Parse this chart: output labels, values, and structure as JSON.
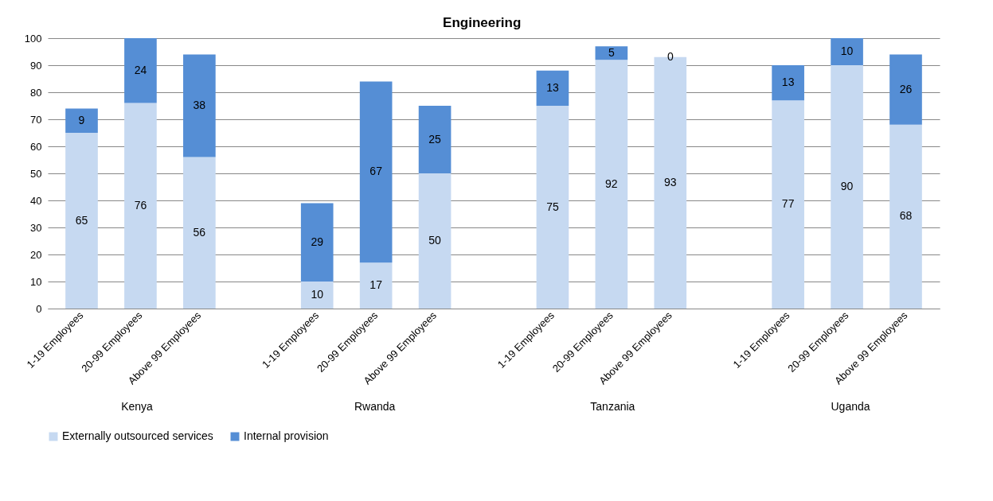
{
  "chart_data": {
    "type": "bar",
    "title": "Engineering",
    "stacked": true,
    "data_labels": true,
    "grid": "y",
    "legend": "bottom",
    "categories": [
      "1-19 Employees",
      "20-99 Employees",
      "Above 99 Employees",
      null,
      "1-19 Employees",
      "20-99 Employees",
      "Above 99 Employees",
      null,
      "1-19 Employees",
      "20-99 Employees",
      "Above 99 Employees",
      null,
      "1-19 Employees",
      "20-99 Employees",
      "Above 99 Employees"
    ],
    "series": [
      {
        "name": "Externally outsourced services",
        "color": "#c6d9f1",
        "values": [
          65,
          76,
          56,
          null,
          10,
          17,
          50,
          null,
          75,
          92,
          93,
          null,
          77,
          90,
          68
        ]
      },
      {
        "name": "Internal provision",
        "color": "#558ed5",
        "values": [
          9,
          24,
          38,
          null,
          29,
          67,
          25,
          null,
          13,
          5,
          0,
          null,
          13,
          10,
          26
        ]
      }
    ],
    "ylim": [
      0,
      100
    ],
    "yticks": [
      0,
      10,
      20,
      30,
      40,
      50,
      60,
      70,
      80,
      90,
      100
    ],
    "annotations": [
      "Kenya",
      "Rwanda",
      "Tanzania",
      "Uganda"
    ]
  }
}
